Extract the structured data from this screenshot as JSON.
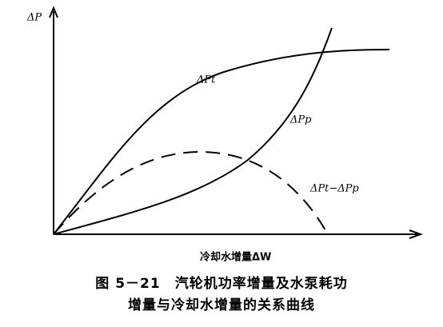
{
  "axes": {
    "y_label": "ΔP",
    "x_label": "冷却水增量ΔW"
  },
  "curves": [
    {
      "label": "ΔPt"
    },
    {
      "label": "ΔPp"
    },
    {
      "label": "ΔPt−ΔPp"
    }
  ],
  "caption": {
    "line1": "图 5－21　汽轮机功率增量及水泵耗功",
    "line2": "增量与冷却水增量的关系曲线"
  }
}
